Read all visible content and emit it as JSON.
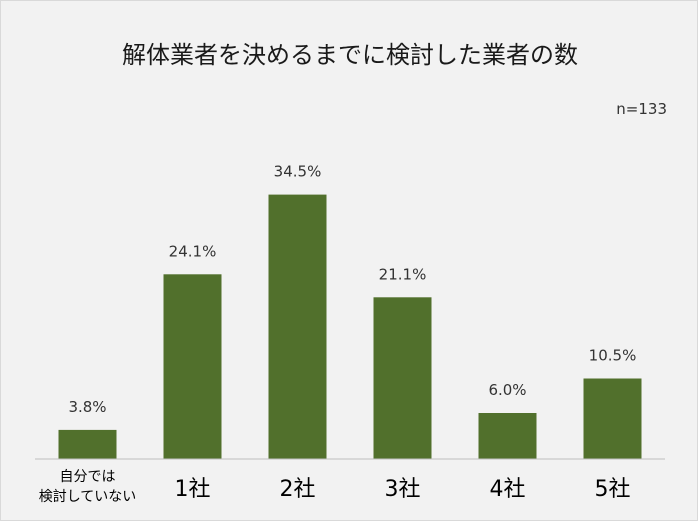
{
  "chart_data": {
    "type": "bar",
    "title": "解体業者を決めるまでに検討した業者の数",
    "note": "n=133",
    "categories": [
      [
        "自分では",
        "検討していない"
      ],
      [
        "1社"
      ],
      [
        "2社"
      ],
      [
        "3社"
      ],
      [
        "4社"
      ],
      [
        "5社"
      ]
    ],
    "values": [
      3.8,
      24.1,
      34.5,
      21.1,
      6.0,
      10.5
    ],
    "value_labels": [
      "3.8%",
      "24.1%",
      "34.5%",
      "21.1%",
      "6.0%",
      "10.5%"
    ],
    "unit": "%",
    "ylim": [
      0,
      40
    ],
    "grid": false,
    "legend": "none",
    "bar_color": "#51702c",
    "axis_color": "#bfbfbf"
  }
}
